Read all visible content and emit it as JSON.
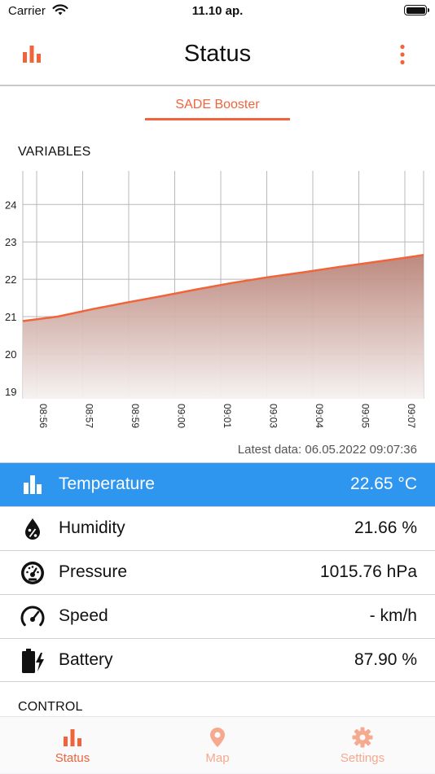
{
  "status_bar": {
    "carrier": "Carrier",
    "time": "11.10 ap."
  },
  "nav": {
    "title": "Status",
    "left_icon": "bar-chart-icon",
    "right_icon": "more-vertical-icon"
  },
  "segment": {
    "label": "SADE Booster"
  },
  "variables_title": "VARIABLES",
  "chart_data": {
    "type": "area",
    "ylim": [
      18.8,
      24.9
    ],
    "yticks": [
      19,
      20,
      21,
      22,
      23,
      24
    ],
    "x_tick_labels": [
      "08:56",
      "08:57",
      "08:59",
      "09:00",
      "09:01",
      "09:03",
      "09:04",
      "09:05",
      "09:07"
    ],
    "x_range_minutes": [
      0,
      11.5
    ],
    "x": [
      0,
      1,
      2,
      3,
      4,
      5,
      6,
      7,
      8,
      9,
      10,
      11,
      11.5
    ],
    "y": [
      20.88,
      21.0,
      21.2,
      21.38,
      21.55,
      21.73,
      21.9,
      22.05,
      22.18,
      22.32,
      22.45,
      22.58,
      22.65
    ],
    "grid": true,
    "line_color": "#f0643c",
    "fill_top_color": "#b98377",
    "fill_bottom_color": "#f6f2f1"
  },
  "latest_data": "Latest data: 06.05.2022 09:07:36",
  "readings": [
    {
      "icon": "bar-chart-icon",
      "label": "Temperature",
      "value": "22.65 °C",
      "selected": true
    },
    {
      "icon": "humidity-drop-icon",
      "label": "Humidity",
      "value": "21.66 %",
      "selected": false
    },
    {
      "icon": "pressure-gauge-icon",
      "label": "Pressure",
      "value": "1015.76 hPa",
      "selected": false
    },
    {
      "icon": "speedometer-icon",
      "label": "Speed",
      "value": "- km/h",
      "selected": false
    },
    {
      "icon": "battery-charging-icon",
      "label": "Battery",
      "value": "87.90 %",
      "selected": false
    }
  ],
  "control_title": "CONTROL",
  "tabs": [
    {
      "label": "Status",
      "icon": "bar-chart-icon",
      "active": true
    },
    {
      "label": "Map",
      "icon": "map-pin-icon",
      "active": false
    },
    {
      "label": "Settings",
      "icon": "gear-icon",
      "active": false
    }
  ],
  "colors": {
    "accent": "#f0643c",
    "accent_inactive": "#f5a98f",
    "selected_row": "#2f96f0"
  }
}
